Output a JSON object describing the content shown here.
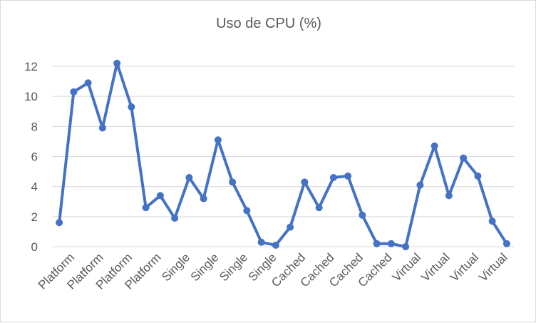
{
  "chart_data": {
    "type": "line",
    "title": "Uso de CPU (%)",
    "xlabel": "",
    "ylabel": "",
    "ylim": [
      0,
      12
    ],
    "yticks": [
      0,
      2,
      4,
      6,
      8,
      10,
      12
    ],
    "grid": true,
    "legend": "none",
    "x_tick_labels": [
      "Platform",
      "Platform",
      "Platform",
      "Platform",
      "Single",
      "Single",
      "Single",
      "Single",
      "Cached",
      "Cached",
      "Cached",
      "Cached",
      "Virtual",
      "Virtual",
      "Virtual",
      "Virtual"
    ],
    "series": [
      {
        "color": "#4472c4",
        "values": [
          1.6,
          10.3,
          10.9,
          7.9,
          12.2,
          9.3,
          2.6,
          3.4,
          1.9,
          4.6,
          3.2,
          7.1,
          4.3,
          2.4,
          0.3,
          0.1,
          1.3,
          4.3,
          2.6,
          4.6,
          4.7,
          2.1,
          0.2,
          0.2,
          0.0,
          4.1,
          6.7,
          3.4,
          5.9,
          4.7,
          1.7,
          0.2
        ]
      }
    ]
  }
}
